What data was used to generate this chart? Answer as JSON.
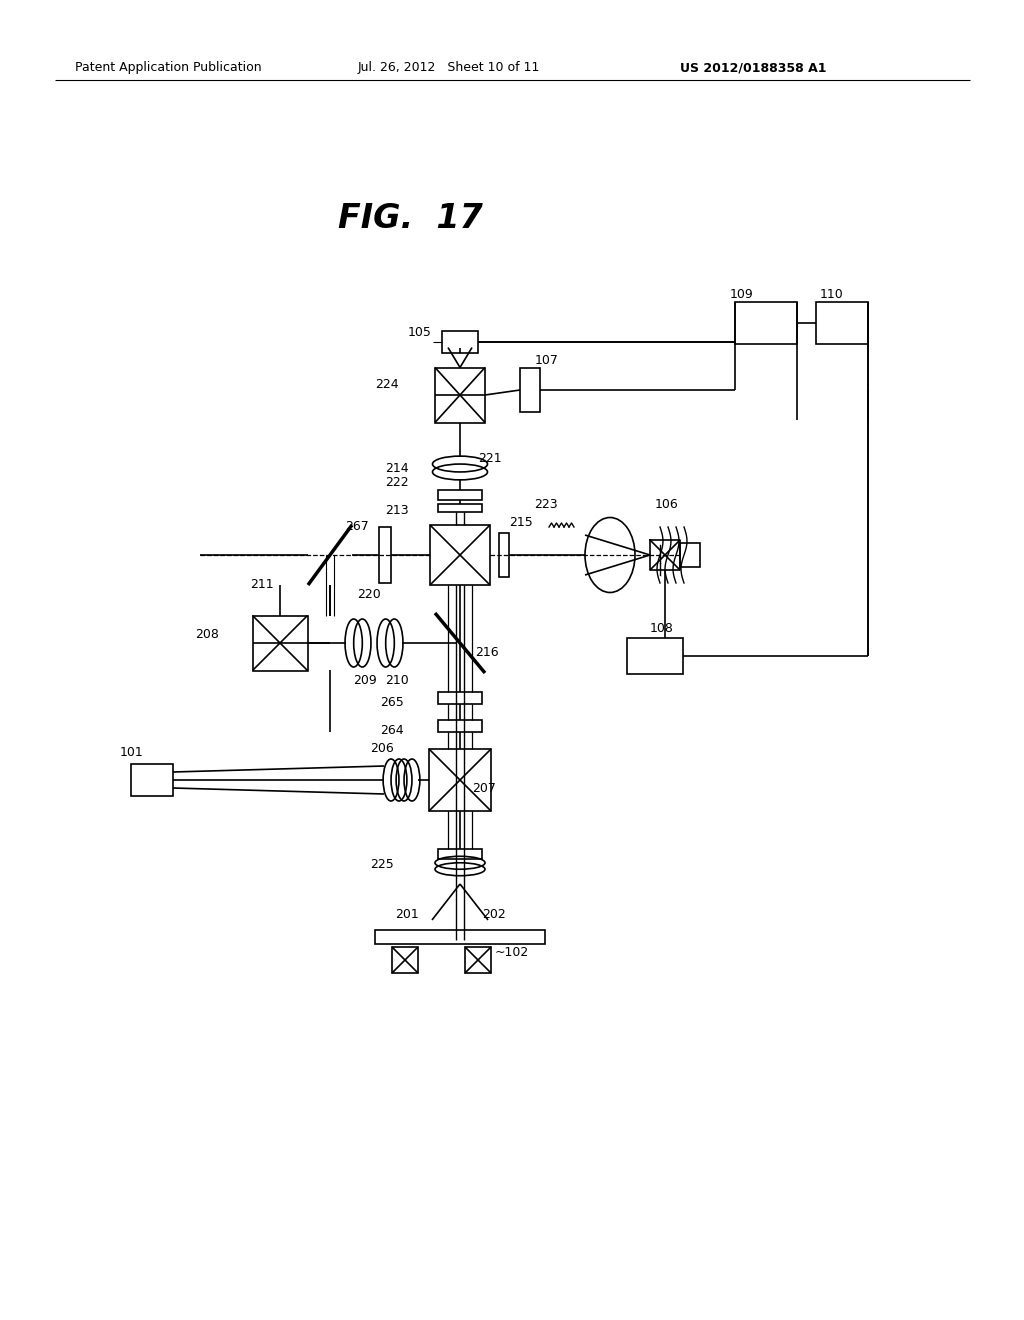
{
  "title": "FIG.  17",
  "header_left": "Patent Application Publication",
  "header_mid": "Jul. 26, 2012   Sheet 10 of 11",
  "header_right": "US 2012/0188358 A1",
  "bg": "#ffffff"
}
